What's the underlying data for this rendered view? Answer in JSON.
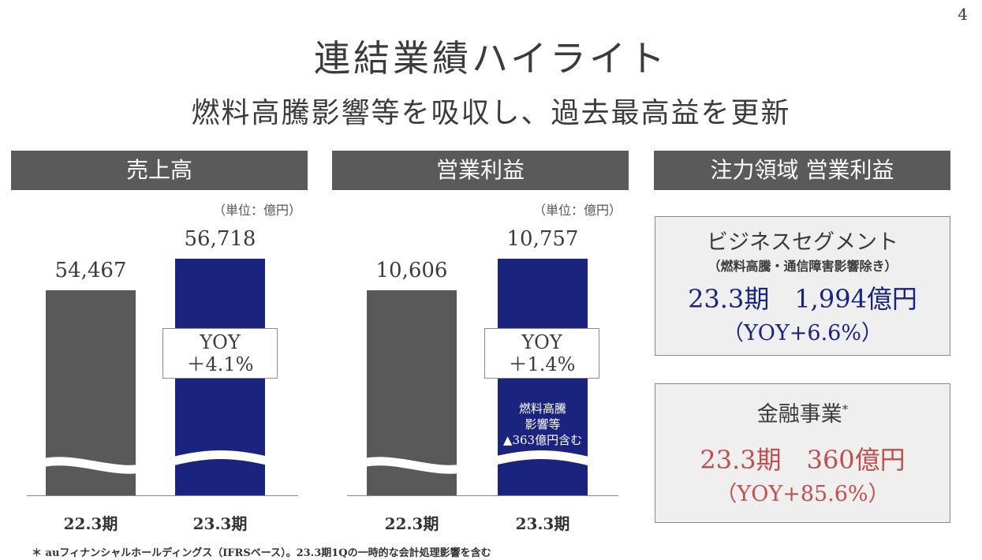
{
  "page_number": "4",
  "title": "連結業績ハイライト",
  "subtitle": "燃料高騰影響等を吸収し、過去最高益を更新",
  "sections": {
    "revenue": {
      "header": "売上高",
      "unit": "（単位：億円）",
      "yoy_line1": "YOY",
      "yoy_line2": "＋4.1%"
    },
    "operating_income": {
      "header": "営業利益",
      "unit": "（単位：億円）",
      "yoy_line1": "YOY",
      "yoy_line2": "＋1.4%",
      "note_line1": "燃料高騰",
      "note_line2": "影響等",
      "note_line3": "▲363億円含む"
    },
    "focus": {
      "header": "注力領域  営業利益",
      "business": {
        "title": "ビジネスセグメント",
        "sub": "（燃料高騰・通信障害影響除き）",
        "value": "23.3期　1,994億円",
        "yoy": "（YOY+6.6%）",
        "color": "#1a237e"
      },
      "finance": {
        "title": "金融事業",
        "mark": "*",
        "value": "23.3期　360億円",
        "yoy": "（YOY+85.6%）",
        "color": "#c0504d"
      }
    }
  },
  "chart_data": [
    {
      "type": "bar",
      "categories": [
        "22.3期",
        "23.3期"
      ],
      "values": [
        54467,
        56718
      ],
      "value_labels": [
        "54,467",
        "56,718"
      ],
      "colors": [
        "#595959",
        "#1a237e"
      ],
      "axis_break": true
    },
    {
      "type": "bar",
      "categories": [
        "22.3期",
        "23.3期"
      ],
      "values": [
        10606,
        10757
      ],
      "value_labels": [
        "10,606",
        "10,757"
      ],
      "colors": [
        "#595959",
        "#1a237e"
      ],
      "axis_break": true
    }
  ],
  "footnote": "＊ auフィナンシャルホールディングス（IFRSベース）。23.3期1Qの一時的な会計処理影響を含む"
}
